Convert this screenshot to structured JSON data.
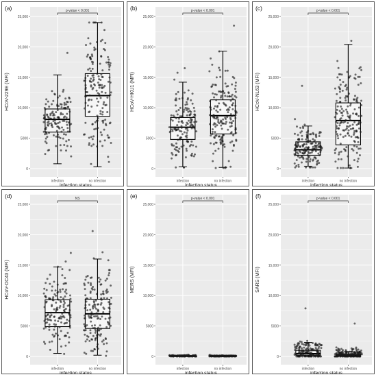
{
  "figure": {
    "xlabel": "infection status"
  },
  "chart_data": [
    {
      "panel": "(a)",
      "type": "box",
      "ylabel": "HCoV-229E (MFI)",
      "categories": [
        "infection",
        "no infection"
      ],
      "ylim": [
        0,
        25000
      ],
      "yticks": [
        0,
        5000,
        10000,
        15000,
        20000,
        25000
      ],
      "ytick_labels": [
        "0",
        "5000",
        "10,000",
        "15,000",
        "20,000",
        "25,000"
      ],
      "significance": "p-value < 0.001",
      "boxes": [
        {
          "min": 800,
          "q1": 6000,
          "median": 8100,
          "q3": 9800,
          "max": 15400
        },
        {
          "min": 300,
          "q1": 8600,
          "median": 12000,
          "q3": 15600,
          "max": 24000
        }
      ],
      "points": [
        {
          "n": 140,
          "mean": 7800,
          "sd": 2400,
          "lo": 600,
          "hi": 19000
        },
        {
          "n": 170,
          "mean": 12000,
          "sd": 4800,
          "lo": 200,
          "hi": 24000
        }
      ]
    },
    {
      "panel": "(b)",
      "type": "box",
      "ylabel": "HCoV-HKU1 (MFI)",
      "categories": [
        "infection",
        "no infection"
      ],
      "ylim": [
        0,
        25000
      ],
      "yticks": [
        0,
        5000,
        10000,
        15000,
        20000,
        25000
      ],
      "ytick_labels": [
        "0",
        "5000",
        "10,000",
        "15,000",
        "20,000",
        "25,000"
      ],
      "significance": "p-value < 0.001",
      "boxes": [
        {
          "min": 300,
          "q1": 4800,
          "median": 6800,
          "q3": 8400,
          "max": 14200
        },
        {
          "min": 200,
          "q1": 5700,
          "median": 8700,
          "q3": 11300,
          "max": 19300
        }
      ],
      "points": [
        {
          "n": 150,
          "mean": 6700,
          "sd": 2700,
          "lo": 200,
          "hi": 16500
        },
        {
          "n": 180,
          "mean": 8700,
          "sd": 4000,
          "lo": 100,
          "hi": 23500
        }
      ]
    },
    {
      "panel": "(c)",
      "type": "box",
      "ylabel": "HCoV-NL63 (MFI)",
      "categories": [
        "infection",
        "no infection"
      ],
      "ylim": [
        0,
        25000
      ],
      "yticks": [
        0,
        5000,
        10000,
        15000,
        20000,
        25000
      ],
      "ytick_labels": [
        "0",
        "5000",
        "10,000",
        "15,000",
        "20,000",
        "25,000"
      ],
      "significance": "p-value < 0.001",
      "boxes": [
        {
          "min": 400,
          "q1": 2200,
          "median": 3100,
          "q3": 4400,
          "max": 7000
        },
        {
          "min": 100,
          "q1": 3900,
          "median": 7900,
          "q3": 10800,
          "max": 20400
        }
      ],
      "points": [
        {
          "n": 160,
          "mean": 3200,
          "sd": 1500,
          "lo": 200,
          "hi": 13600
        },
        {
          "n": 180,
          "mean": 7900,
          "sd": 4300,
          "lo": 100,
          "hi": 21000
        }
      ]
    },
    {
      "panel": "(d)",
      "type": "box",
      "ylabel": "HCoV-OC43 (MFI)",
      "categories": [
        "infection",
        "no infection"
      ],
      "ylim": [
        0,
        25000
      ],
      "yticks": [
        0,
        5000,
        10000,
        15000,
        20000,
        25000
      ],
      "ytick_labels": [
        "0",
        "5000",
        "10,000",
        "15,000",
        "20,000",
        "25,000"
      ],
      "significance": "NS",
      "boxes": [
        {
          "min": 500,
          "q1": 4900,
          "median": 7200,
          "q3": 9300,
          "max": 14700
        },
        {
          "min": 200,
          "q1": 4600,
          "median": 7000,
          "q3": 9400,
          "max": 16000
        }
      ],
      "points": [
        {
          "n": 150,
          "mean": 7200,
          "sd": 3100,
          "lo": 300,
          "hi": 17000
        },
        {
          "n": 170,
          "mean": 7100,
          "sd": 3700,
          "lo": 100,
          "hi": 20600
        }
      ]
    },
    {
      "panel": "(e)",
      "type": "box",
      "ylabel": "MERS (MFI)",
      "categories": [
        "infection",
        "no infection"
      ],
      "ylim": [
        0,
        25000
      ],
      "yticks": [
        0,
        5000,
        10000,
        15000,
        20000,
        25000
      ],
      "ytick_labels": [
        "0",
        "5000",
        "10,000",
        "15,000",
        "20,000",
        "25,000"
      ],
      "significance": "p-value < 0.001",
      "boxes": [
        {
          "min": 0,
          "q1": 20,
          "median": 60,
          "q3": 120,
          "max": 250
        },
        {
          "min": 0,
          "q1": 10,
          "median": 40,
          "q3": 90,
          "max": 200
        }
      ],
      "points": [
        {
          "n": 150,
          "mean": 80,
          "sd": 60,
          "lo": 0,
          "hi": 300
        },
        {
          "n": 170,
          "mean": 60,
          "sd": 50,
          "lo": 0,
          "hi": 260
        }
      ]
    },
    {
      "panel": "(f)",
      "type": "box",
      "ylabel": "SARS (MFI)",
      "categories": [
        "infection",
        "no infection"
      ],
      "ylim": [
        0,
        25000
      ],
      "yticks": [
        0,
        5000,
        10000,
        15000,
        20000,
        25000
      ],
      "ytick_labels": [
        "0",
        "5000",
        "10,000",
        "15,000",
        "20,000",
        "25,000"
      ],
      "significance": "p-value < 0.001",
      "boxes": [
        {
          "min": 0,
          "q1": 200,
          "median": 450,
          "q3": 1000,
          "max": 2300
        },
        {
          "min": 0,
          "q1": 50,
          "median": 150,
          "q3": 350,
          "max": 800
        }
      ],
      "points": [
        {
          "n": 150,
          "mean": 800,
          "sd": 900,
          "lo": 0,
          "hi": 7900
        },
        {
          "n": 170,
          "mean": 300,
          "sd": 500,
          "lo": 0,
          "hi": 5400
        }
      ]
    }
  ]
}
